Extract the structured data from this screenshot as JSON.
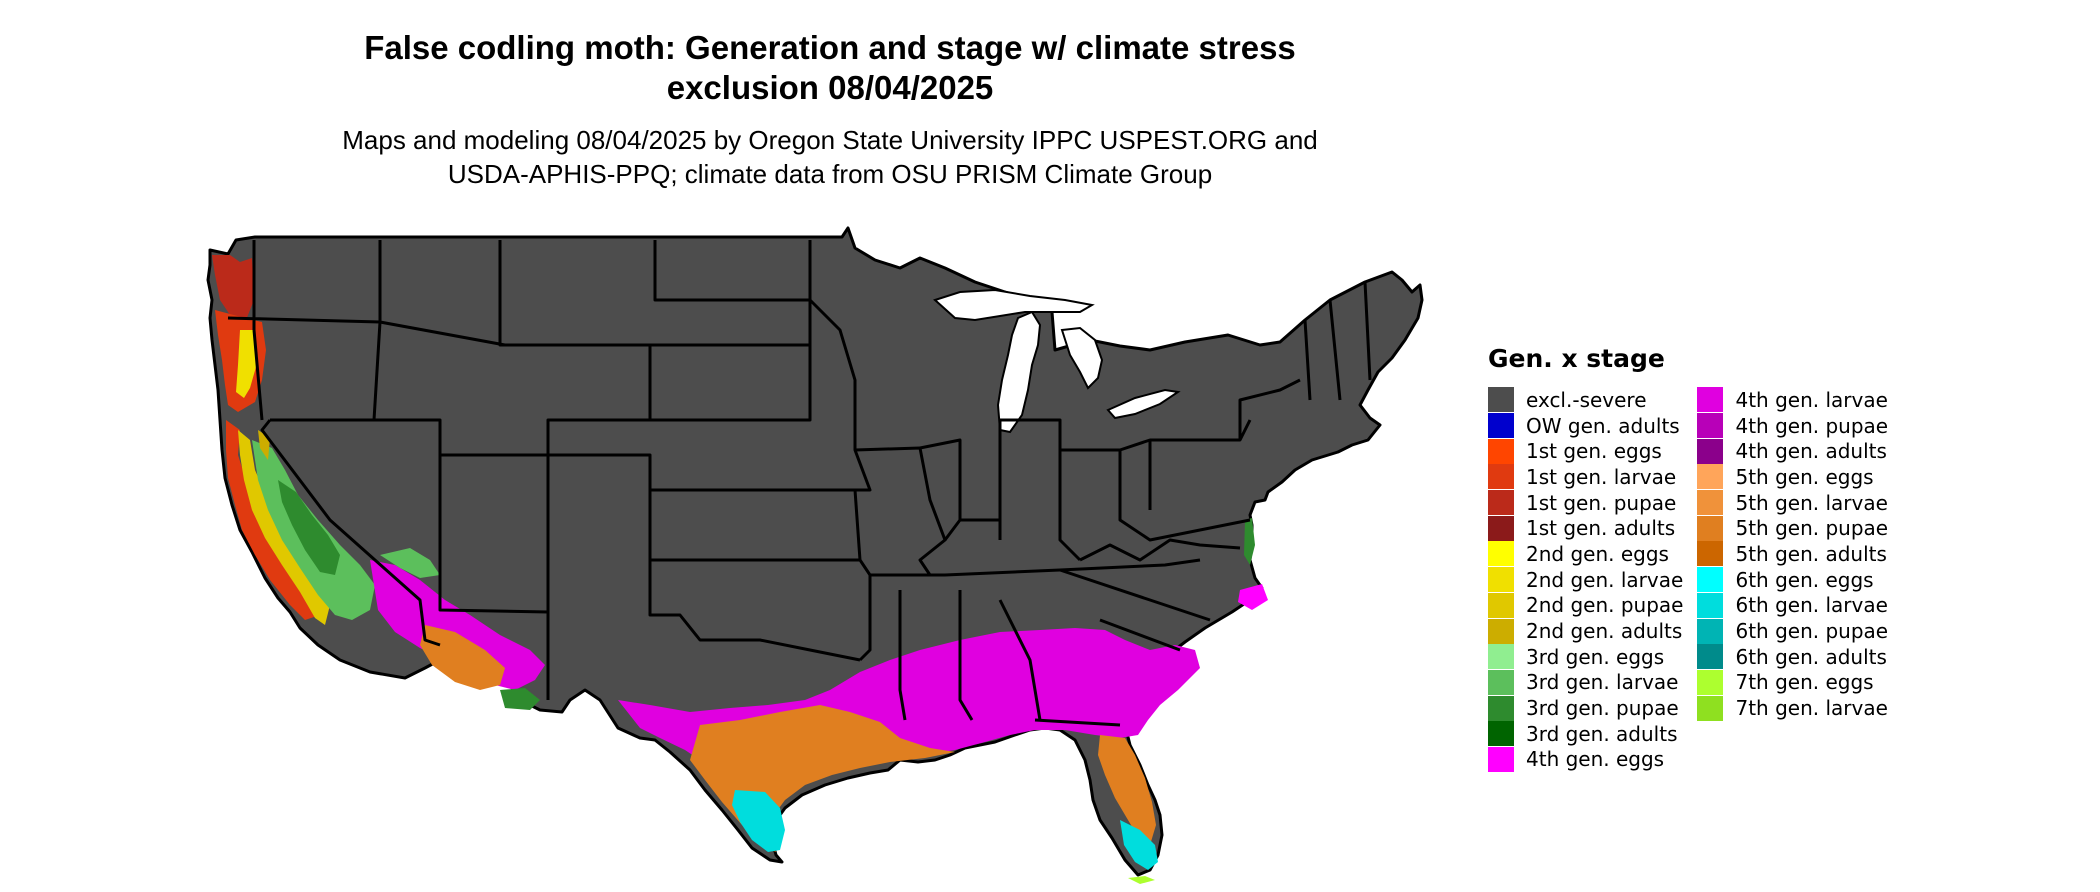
{
  "title_line1": "False codling moth: Generation and stage w/ climate stress",
  "title_line2": "exclusion 08/04/2025",
  "subtitle_line1": "Maps and modeling 08/04/2025 by Oregon State University IPPC USPEST.ORG and",
  "subtitle_line2": "USDA-APHIS-PPQ; climate data from OSU PRISM Climate Group",
  "legend": {
    "title": "Gen. x stage",
    "col1": [
      {
        "label": "excl.-severe",
        "color": "#4d4d4d"
      },
      {
        "label": "OW gen. adults",
        "color": "#0000cd"
      },
      {
        "label": "1st gen. eggs",
        "color": "#ff4500"
      },
      {
        "label": "1st gen. larvae",
        "color": "#e03a10"
      },
      {
        "label": "1st gen. pupae",
        "color": "#bb2a1a"
      },
      {
        "label": "1st gen. adults",
        "color": "#8b1a1a"
      },
      {
        "label": "2nd gen. eggs",
        "color": "#ffff00"
      },
      {
        "label": "2nd gen. larvae",
        "color": "#f0e000"
      },
      {
        "label": "2nd gen. pupae",
        "color": "#e0c800"
      },
      {
        "label": "2nd gen. adults",
        "color": "#ccad00"
      },
      {
        "label": "3rd gen. eggs",
        "color": "#90ee90"
      },
      {
        "label": "3rd gen. larvae",
        "color": "#5cbf5c"
      },
      {
        "label": "3rd gen. pupae",
        "color": "#2e8b2e"
      },
      {
        "label": "3rd gen. adults",
        "color": "#006400"
      },
      {
        "label": "4th gen. eggs",
        "color": "#ff00ff"
      }
    ],
    "col2": [
      {
        "label": "4th gen. larvae",
        "color": "#e000e0"
      },
      {
        "label": "4th gen. pupae",
        "color": "#b800b8"
      },
      {
        "label": "4th gen. adults",
        "color": "#8b008b"
      },
      {
        "label": "5th gen. eggs",
        "color": "#ffa55a"
      },
      {
        "label": "5th gen. larvae",
        "color": "#f0923a"
      },
      {
        "label": "5th gen. pupae",
        "color": "#e07f20"
      },
      {
        "label": "5th gen. adults",
        "color": "#cc6600"
      },
      {
        "label": "6th gen. eggs",
        "color": "#00ffff"
      },
      {
        "label": "6th gen. larvae",
        "color": "#00dddd"
      },
      {
        "label": "6th gen. pupae",
        "color": "#00b4b4"
      },
      {
        "label": "6th gen. adults",
        "color": "#008b8b"
      },
      {
        "label": "7th gen. eggs",
        "color": "#adff2f"
      },
      {
        "label": "7th gen. larvae",
        "color": "#8fe020"
      }
    ]
  }
}
